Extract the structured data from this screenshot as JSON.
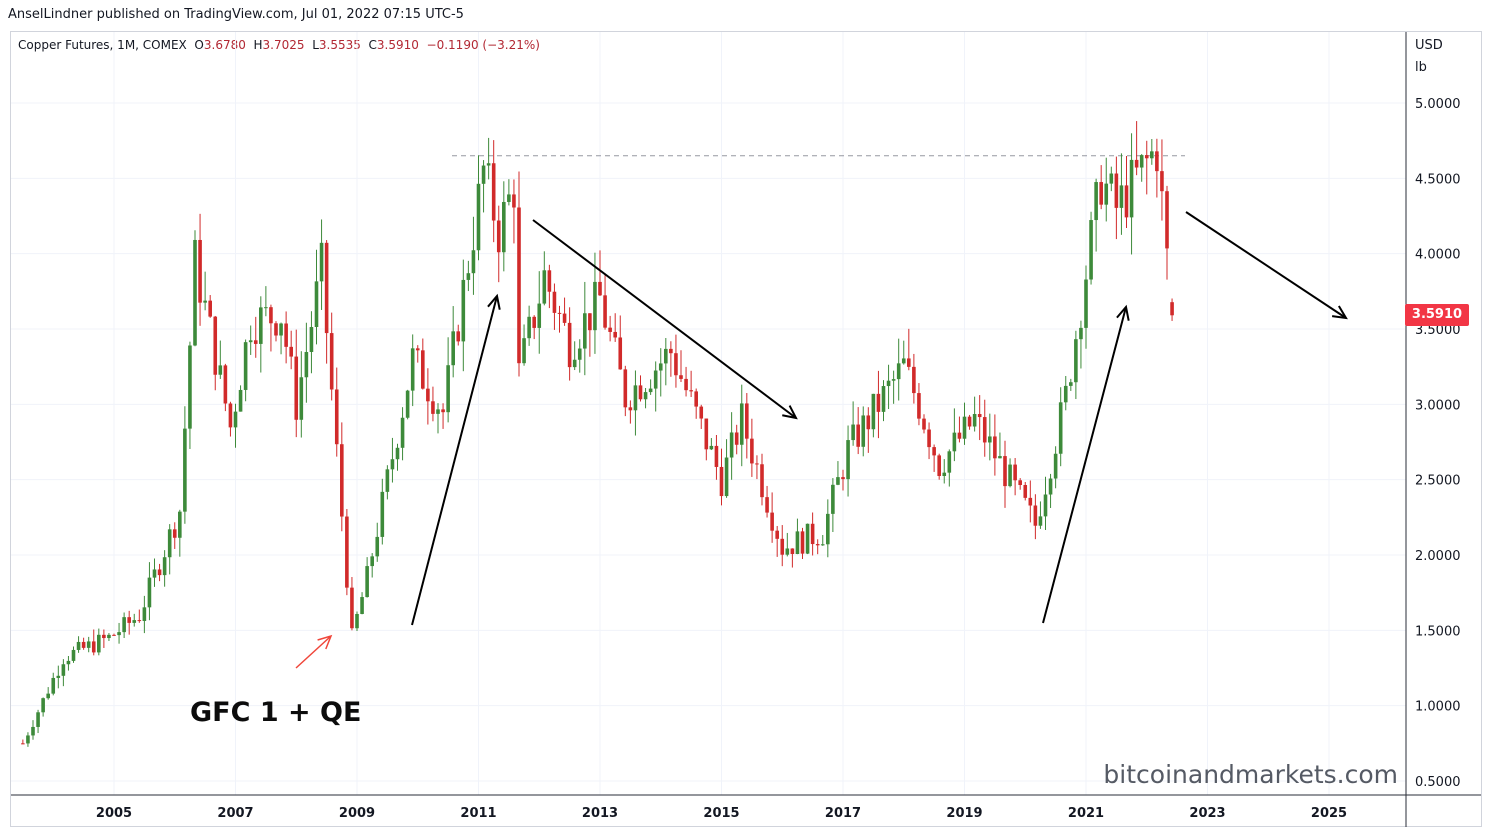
{
  "header": {
    "published": "AnselLindner published on TradingView.com, Jul 01, 2022 07:15 UTC-5"
  },
  "legend": {
    "symbol": "Copper Futures, 1M, COMEX",
    "open_label": "O",
    "open": "3.6780",
    "high_label": "H",
    "high": "3.7025",
    "low_label": "L",
    "low": "3.5535",
    "close_label": "C",
    "close": "3.5910",
    "change": "−0.1190 (−3.21%)"
  },
  "price_axis": {
    "unit_line1": "USD",
    "unit_line2": "lb",
    "last_price_tag": "3.5910"
  },
  "annotations": {
    "gfc": "GFC 1 + QE",
    "watermark": "bitcoinandmarkets.com"
  },
  "colors": {
    "up": "#26a69a",
    "up_body": "#3d8a3a",
    "down": "#d12a2a",
    "grid": "#f0f3fa",
    "arrow": "#000000",
    "red_arrow": "#f0463a"
  },
  "chart_data": {
    "type": "candlestick",
    "title": "Copper Futures, 1M, COMEX",
    "ylabel": "USD lb",
    "ylim": [
      0.35,
      5.3
    ],
    "y_ticks": [
      "5.0000",
      "4.5000",
      "4.0000",
      "3.5000",
      "3.0000",
      "2.5000",
      "2.0000",
      "1.5000",
      "1.0000",
      "0.5000"
    ],
    "y_tick_values": [
      5.0,
      4.5,
      4.0,
      3.5,
      3.0,
      2.5,
      2.0,
      1.5,
      1.0,
      0.5
    ],
    "x_ticks": [
      "2005",
      "2007",
      "2009",
      "2011",
      "2013",
      "2015",
      "2017",
      "2019",
      "2021",
      "2023",
      "2025"
    ],
    "grid": true,
    "resistance_level": 4.65,
    "last_close": 3.591,
    "price_path_keypoints": [
      {
        "date": "2003-07",
        "value": 0.75
      },
      {
        "date": "2004-03",
        "value": 1.32
      },
      {
        "date": "2004-12",
        "value": 1.45
      },
      {
        "date": "2005-06",
        "value": 1.6
      },
      {
        "date": "2006-02",
        "value": 2.3
      },
      {
        "date": "2006-05",
        "value": 3.95
      },
      {
        "date": "2006-12",
        "value": 2.85
      },
      {
        "date": "2007-04",
        "value": 3.55
      },
      {
        "date": "2007-10",
        "value": 3.6
      },
      {
        "date": "2008-01",
        "value": 3.0
      },
      {
        "date": "2008-06",
        "value": 3.9
      },
      {
        "date": "2008-12",
        "value": 1.45
      },
      {
        "date": "2009-03",
        "value": 1.85
      },
      {
        "date": "2009-12",
        "value": 3.3
      },
      {
        "date": "2010-06",
        "value": 2.95
      },
      {
        "date": "2011-02",
        "value": 4.55
      },
      {
        "date": "2011-05",
        "value": 4.15
      },
      {
        "date": "2011-08",
        "value": 4.45
      },
      {
        "date": "2011-09",
        "value": 3.2
      },
      {
        "date": "2012-02",
        "value": 3.85
      },
      {
        "date": "2012-07",
        "value": 3.4
      },
      {
        "date": "2013-01",
        "value": 3.7
      },
      {
        "date": "2013-06",
        "value": 3.05
      },
      {
        "date": "2014-03",
        "value": 3.35
      },
      {
        "date": "2015-01",
        "value": 2.5
      },
      {
        "date": "2015-05",
        "value": 2.9
      },
      {
        "date": "2016-01",
        "value": 2.05
      },
      {
        "date": "2016-09",
        "value": 2.15
      },
      {
        "date": "2017-02",
        "value": 2.7
      },
      {
        "date": "2018-01",
        "value": 3.25
      },
      {
        "date": "2018-04",
        "value": 3.0
      },
      {
        "date": "2018-08",
        "value": 2.6
      },
      {
        "date": "2019-03",
        "value": 2.9
      },
      {
        "date": "2019-09",
        "value": 2.55
      },
      {
        "date": "2020-03",
        "value": 2.2
      },
      {
        "date": "2020-09",
        "value": 3.05
      },
      {
        "date": "2021-04",
        "value": 4.5
      },
      {
        "date": "2021-07",
        "value": 4.3
      },
      {
        "date": "2022-03",
        "value": 4.7
      },
      {
        "date": "2022-06",
        "value": 3.6
      }
    ]
  }
}
